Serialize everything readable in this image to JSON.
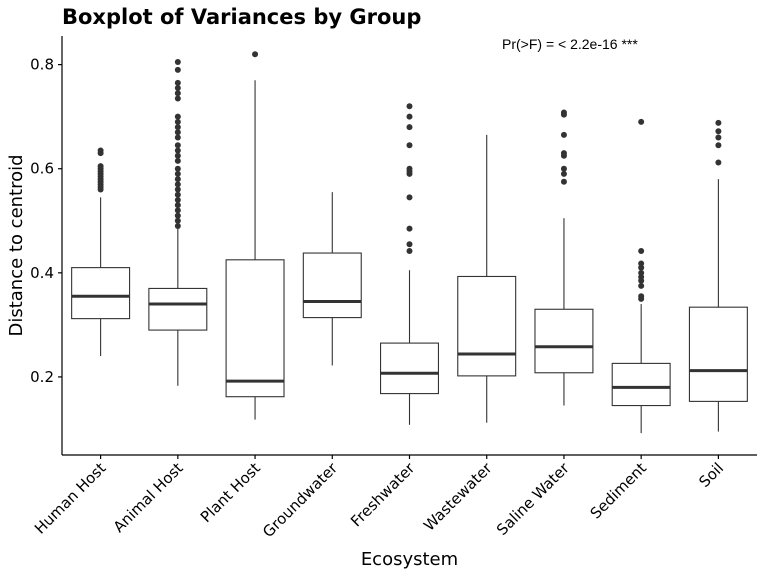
{
  "chart_data": {
    "type": "boxplot",
    "title": "Boxplot of Variances by Group",
    "annotation": "Pr(>F) = < 2.2e-16 ***",
    "xlabel": "Ecosystem",
    "ylabel": "Distance to centroid",
    "ylim": [
      0.05,
      0.855
    ],
    "yticks": [
      0.2,
      0.4,
      0.6,
      0.8
    ],
    "ytick_labels": [
      "0.2",
      "0.4",
      "0.6",
      "0.8"
    ],
    "grid": false,
    "categories": [
      "Human Host",
      "Animal Host",
      "Plant Host",
      "Groundwater",
      "Freshwater",
      "Wastewater",
      "Saline Water",
      "Sediment",
      "Soil"
    ],
    "boxes": [
      {
        "min": 0.24,
        "q1": 0.312,
        "median": 0.355,
        "q3": 0.41,
        "max": 0.545,
        "outliers": [
          0.635,
          0.63,
          0.605,
          0.6,
          0.595,
          0.59,
          0.585,
          0.58,
          0.575,
          0.57,
          0.565,
          0.56
        ]
      },
      {
        "min": 0.183,
        "q1": 0.29,
        "median": 0.34,
        "q3": 0.37,
        "max": 0.49,
        "outliers": [
          0.805,
          0.79,
          0.765,
          0.755,
          0.745,
          0.735,
          0.7,
          0.69,
          0.68,
          0.67,
          0.66,
          0.645,
          0.635,
          0.625,
          0.615,
          0.6,
          0.59,
          0.58,
          0.57,
          0.56,
          0.55,
          0.54,
          0.53,
          0.52,
          0.51,
          0.5,
          0.49
        ]
      },
      {
        "min": 0.118,
        "q1": 0.162,
        "median": 0.192,
        "q3": 0.425,
        "max": 0.77,
        "outliers": [
          0.82
        ]
      },
      {
        "min": 0.222,
        "q1": 0.314,
        "median": 0.345,
        "q3": 0.438,
        "max": 0.555,
        "outliers": []
      },
      {
        "min": 0.108,
        "q1": 0.168,
        "median": 0.207,
        "q3": 0.265,
        "max": 0.405,
        "outliers": [
          0.72,
          0.7,
          0.68,
          0.645,
          0.6,
          0.595,
          0.59,
          0.545,
          0.485,
          0.455,
          0.442
        ]
      },
      {
        "min": 0.112,
        "q1": 0.202,
        "median": 0.244,
        "q3": 0.393,
        "max": 0.665,
        "outliers": []
      },
      {
        "min": 0.145,
        "q1": 0.208,
        "median": 0.258,
        "q3": 0.33,
        "max": 0.505,
        "outliers": [
          0.708,
          0.704,
          0.665,
          0.63,
          0.625,
          0.6,
          0.59,
          0.575
        ]
      },
      {
        "min": 0.092,
        "q1": 0.145,
        "median": 0.18,
        "q3": 0.226,
        "max": 0.34,
        "outliers": [
          0.69,
          0.442,
          0.418,
          0.41,
          0.4,
          0.392,
          0.385,
          0.375,
          0.355,
          0.35
        ]
      },
      {
        "min": 0.095,
        "q1": 0.153,
        "median": 0.212,
        "q3": 0.334,
        "max": 0.58,
        "outliers": [
          0.688,
          0.672,
          0.66,
          0.645,
          0.612
        ]
      }
    ]
  }
}
